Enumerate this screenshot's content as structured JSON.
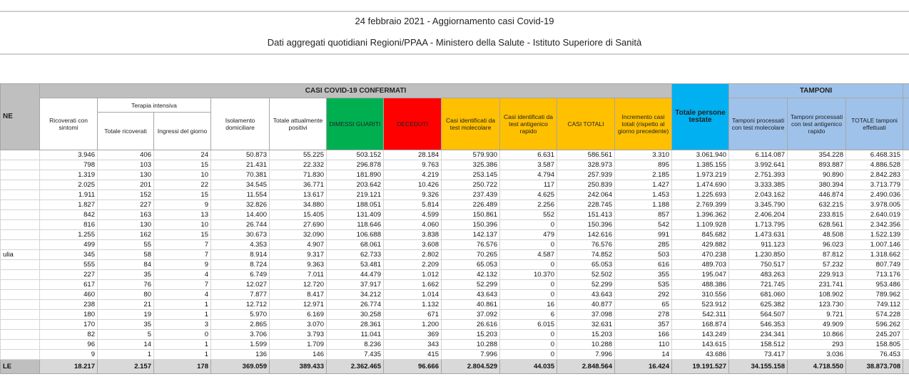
{
  "header": {
    "title": "24 febbraio 2021 - Aggiornamento casi Covid-19",
    "subtitle": "Dati aggregati quotidiani Regioni/PPAA - Ministero della Salute - Istituto Superiore di Sanità"
  },
  "table": {
    "region_header": "NE",
    "group_casi": "CASI COVID-19 CONFERMATI",
    "group_terapia": "Terapia intensiva",
    "group_tamponi": "TAMPONI",
    "columns": [
      "Ricoverati con sintomi",
      "Totale ricoverati",
      "Ingressi del giorno",
      "Isolamento domiciliare",
      "Totale attualmente positivi",
      "DIMESSI GUARITI",
      "DECEDUTI",
      "Casi identificati da test molecolare",
      "Casi identificati da test antigenico rapido",
      "CASI TOTALI",
      "Incremento casi totali (rispetto al giorno precedente)",
      "Totale persone testate",
      "Tamponi processati con test molecolare",
      "Tamponi processati con test antigenico rapido",
      "TOTALE tamponi effettuati"
    ],
    "rows": [
      {
        "values": [
          "3.946",
          "406",
          "24",
          "50.873",
          "55.225",
          "503.152",
          "28.184",
          "579.930",
          "6.631",
          "586.561",
          "3.310",
          "3.061.940",
          "6.114.087",
          "354.228",
          "6.468.315"
        ]
      },
      {
        "values": [
          "798",
          "103",
          "15",
          "21.431",
          "22.332",
          "296.878",
          "9.763",
          "325.386",
          "3.587",
          "328.973",
          "895",
          "1.385.155",
          "3.992.641",
          "893.887",
          "4.886.528"
        ]
      },
      {
        "values": [
          "1.319",
          "130",
          "10",
          "70.381",
          "71.830",
          "181.890",
          "4.219",
          "253.145",
          "4.794",
          "257.939",
          "2.185",
          "1.973.219",
          "2.751.393",
          "90.890",
          "2.842.283"
        ]
      },
      {
        "values": [
          "2.025",
          "201",
          "22",
          "34.545",
          "36.771",
          "203.642",
          "10.426",
          "250.722",
          "117",
          "250.839",
          "1.427",
          "1.474.690",
          "3.333.385",
          "380.394",
          "3.713.779"
        ]
      },
      {
        "values": [
          "1.911",
          "152",
          "15",
          "11.554",
          "13.617",
          "219.121",
          "9.326",
          "237.439",
          "4.625",
          "242.064",
          "1.453",
          "1.225.693",
          "2.043.162",
          "446.874",
          "2.490.036"
        ]
      },
      {
        "values": [
          "1.827",
          "227",
          "9",
          "32.826",
          "34.880",
          "188.051",
          "5.814",
          "226.489",
          "2.256",
          "228.745",
          "1.188",
          "2.769.399",
          "3.345.790",
          "632.215",
          "3.978.005"
        ]
      },
      {
        "values": [
          "842",
          "163",
          "13",
          "14.400",
          "15.405",
          "131.409",
          "4.599",
          "150.861",
          "552",
          "151.413",
          "857",
          "1.396.362",
          "2.406.204",
          "233.815",
          "2.640.019"
        ]
      },
      {
        "values": [
          "816",
          "130",
          "10",
          "26.744",
          "27.690",
          "118.646",
          "4.060",
          "150.396",
          "0",
          "150.396",
          "542",
          "1.109.928",
          "1.713.795",
          "628.561",
          "2.342.356"
        ]
      },
      {
        "values": [
          "1.255",
          "162",
          "15",
          "30.673",
          "32.090",
          "106.688",
          "3.838",
          "142.137",
          "479",
          "142.616",
          "991",
          "845.682",
          "1.473.631",
          "48.508",
          "1.522.139"
        ]
      },
      {
        "values": [
          "499",
          "55",
          "7",
          "4.353",
          "4.907",
          "68.061",
          "3.608",
          "76.576",
          "0",
          "76.576",
          "285",
          "429.882",
          "911.123",
          "96.023",
          "1.007.146"
        ]
      },
      {
        "region": "ulia",
        "values": [
          "345",
          "58",
          "7",
          "8.914",
          "9.317",
          "62.733",
          "2.802",
          "70.265",
          "4.587",
          "74.852",
          "503",
          "470.238",
          "1.230.850",
          "87.812",
          "1.318.662"
        ]
      },
      {
        "values": [
          "555",
          "84",
          "9",
          "8.724",
          "9.363",
          "53.481",
          "2.209",
          "65.053",
          "0",
          "65.053",
          "616",
          "489.703",
          "750.517",
          "57.232",
          "807.749"
        ]
      },
      {
        "values": [
          "227",
          "35",
          "4",
          "6.749",
          "7.011",
          "44.479",
          "1.012",
          "42.132",
          "10.370",
          "52.502",
          "355",
          "195.047",
          "483.263",
          "229.913",
          "713.176"
        ]
      },
      {
        "values": [
          "617",
          "76",
          "7",
          "12.027",
          "12.720",
          "37.917",
          "1.662",
          "52.299",
          "0",
          "52.299",
          "535",
          "488.386",
          "721.745",
          "231.741",
          "953.486"
        ]
      },
      {
        "values": [
          "460",
          "80",
          "4",
          "7.877",
          "8.417",
          "34.212",
          "1.014",
          "43.643",
          "0",
          "43.643",
          "292",
          "310.556",
          "681.060",
          "108.902",
          "789.962"
        ]
      },
      {
        "values": [
          "238",
          "21",
          "1",
          "12.712",
          "12.971",
          "26.774",
          "1.132",
          "40.861",
          "16",
          "40.877",
          "65",
          "523.912",
          "625.382",
          "123.730",
          "749.112"
        ]
      },
      {
        "values": [
          "180",
          "19",
          "1",
          "5.970",
          "6.169",
          "30.258",
          "671",
          "37.092",
          "6",
          "37.098",
          "278",
          "542.311",
          "564.507",
          "9.721",
          "574.228"
        ]
      },
      {
        "values": [
          "170",
          "35",
          "3",
          "2.865",
          "3.070",
          "28.361",
          "1.200",
          "26.616",
          "6.015",
          "32.631",
          "357",
          "168.874",
          "546.353",
          "49.909",
          "596.262"
        ]
      },
      {
        "values": [
          "82",
          "5",
          "0",
          "3.706",
          "3.793",
          "11.041",
          "369",
          "15.203",
          "0",
          "15.203",
          "166",
          "143.249",
          "234.341",
          "10.866",
          "245.207"
        ]
      },
      {
        "values": [
          "96",
          "14",
          "1",
          "1.599",
          "1.709",
          "8.236",
          "343",
          "10.288",
          "0",
          "10.288",
          "110",
          "143.615",
          "158.512",
          "293",
          "158.805"
        ]
      },
      {
        "values": [
          "9",
          "1",
          "1",
          "136",
          "146",
          "7.435",
          "415",
          "7.996",
          "0",
          "7.996",
          "14",
          "43.686",
          "73.417",
          "3.036",
          "76.453"
        ]
      }
    ],
    "total": {
      "region": "LE",
      "values": [
        "18.217",
        "2.157",
        "178",
        "369.059",
        "389.433",
        "2.362.465",
        "96.666",
        "2.804.529",
        "44.035",
        "2.848.564",
        "16.424",
        "19.191.527",
        "34.155.158",
        "4.718.550",
        "38.873.708"
      ]
    }
  }
}
